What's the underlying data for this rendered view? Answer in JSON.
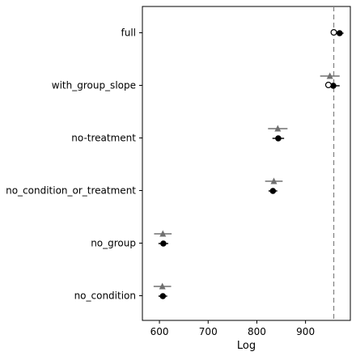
{
  "chart_data": {
    "type": "scatter",
    "title": "",
    "xlabel": "Log",
    "ylabel": "",
    "xlim": [
      565,
      992
    ],
    "xticks": [
      600,
      700,
      800,
      900
    ],
    "grid": false,
    "legend": "none",
    "categories": [
      "full",
      "with_group_slope",
      "no-treatment",
      "no_condition_or_treatment",
      "no_group",
      "no_condition"
    ],
    "reference_line": {
      "x": 958,
      "style": "dashed",
      "color": "#808080"
    },
    "series": [
      {
        "marker": "circle-filled",
        "color": "#000000",
        "points": [
          {
            "category": "full",
            "x": 970,
            "err": 8
          },
          {
            "category": "with_group_slope",
            "x": 957,
            "err": 13
          },
          {
            "category": "no-treatment",
            "x": 844,
            "err": 12
          },
          {
            "category": "no_condition_or_treatment",
            "x": 833,
            "err": 9
          },
          {
            "category": "no_group",
            "x": 608,
            "err": 10
          },
          {
            "category": "no_condition",
            "x": 607,
            "err": 9
          }
        ]
      },
      {
        "marker": "circle-open",
        "color": "#000000",
        "points": [
          {
            "category": "full",
            "x": 958
          },
          {
            "category": "with_group_slope",
            "x": 947
          }
        ]
      },
      {
        "marker": "triangle",
        "color": "#707070",
        "points": [
          {
            "category": "with_group_slope",
            "x": 950,
            "err": 20
          },
          {
            "category": "no-treatment",
            "x": 843,
            "err": 20
          },
          {
            "category": "no_condition_or_treatment",
            "x": 835,
            "err": 18
          },
          {
            "category": "no_group",
            "x": 607,
            "err": 18
          },
          {
            "category": "no_condition",
            "x": 606,
            "err": 18
          }
        ]
      }
    ]
  }
}
